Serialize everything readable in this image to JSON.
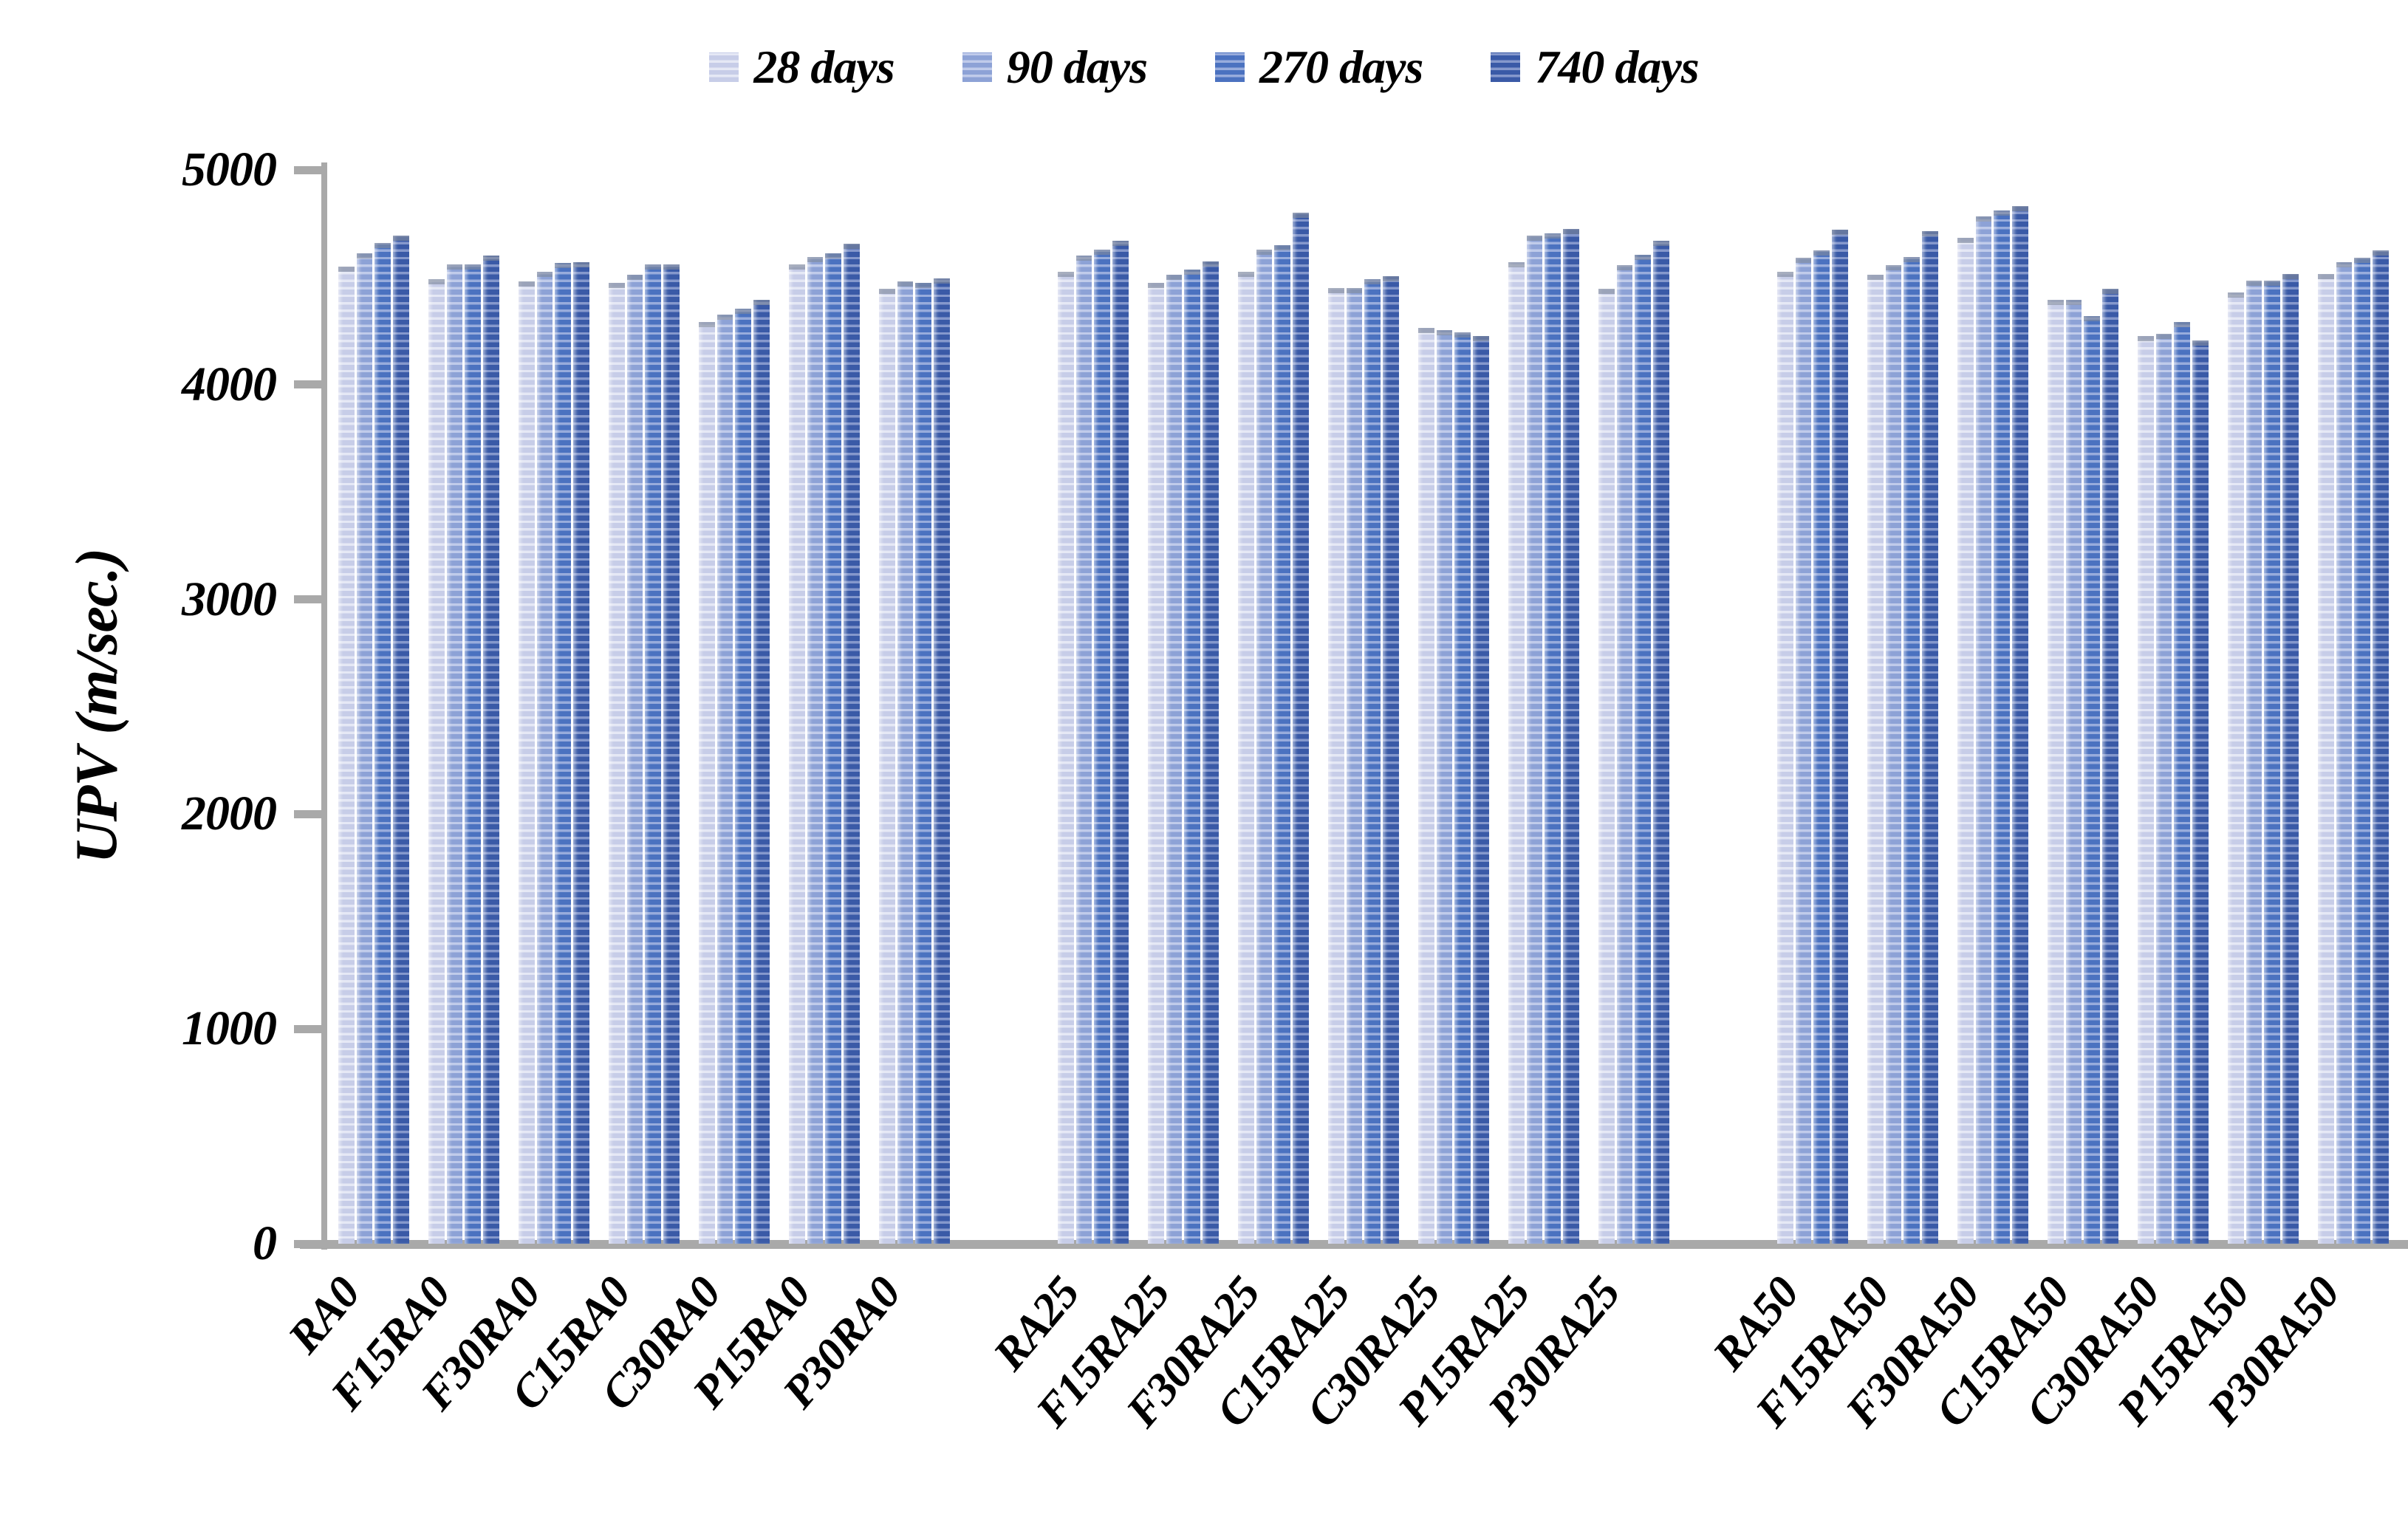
{
  "chart_data": {
    "type": "bar",
    "title": "",
    "xlabel": "",
    "ylabel": "UPV (m/sec.)",
    "ylim": [
      0,
      5000
    ],
    "yticks": [
      0,
      1000,
      2000,
      3000,
      4000,
      5000
    ],
    "grid": false,
    "legend_position": "top-center",
    "axis_color": "#a9a9a9",
    "text_color": "#000000",
    "categories": [
      "RA0",
      "F15RA0",
      "F30RA0",
      "C15RA0",
      "C30RA0",
      "P15RA0",
      "P30RA0",
      "RA25",
      "F15RA25",
      "F30RA25",
      "C15RA25",
      "C30RA25",
      "P15RA25",
      "P30RA25",
      "RA50",
      "F15RA50",
      "F30RA50",
      "C15RA50",
      "C30RA50",
      "P15RA50",
      "P30RA50"
    ],
    "cluster_sizes": [
      7,
      7,
      7
    ],
    "series": [
      {
        "name": "28 days",
        "color_block": "#c7cde8",
        "color_gap": "#e5e8f5",
        "values": [
          4550,
          4490,
          4480,
          4475,
          4290,
          4560,
          4445,
          4525,
          4475,
          4525,
          4450,
          4265,
          4570,
          4445,
          4525,
          4510,
          4685,
          4395,
          4225,
          4430,
          4515
        ]
      },
      {
        "name": "90 days",
        "color_block": "#8da2d6",
        "color_gap": "#c0cbea",
        "values": [
          4610,
          4560,
          4525,
          4510,
          4325,
          4595,
          4480,
          4600,
          4510,
          4630,
          4450,
          4255,
          4695,
          4555,
          4590,
          4555,
          4785,
          4395,
          4235,
          4485,
          4570
        ]
      },
      {
        "name": "270 days",
        "color_block": "#4b72c0",
        "color_gap": "#98acdc",
        "values": [
          4660,
          4560,
          4565,
          4560,
          4355,
          4610,
          4475,
          4630,
          4535,
          4650,
          4490,
          4245,
          4705,
          4605,
          4625,
          4595,
          4810,
          4320,
          4290,
          4485,
          4590
        ]
      },
      {
        "name": "740 days",
        "color_block": "#3a5aa7",
        "color_gap": "#8598cc",
        "values": [
          4695,
          4600,
          4570,
          4560,
          4395,
          4655,
          4495,
          4670,
          4575,
          4800,
          4505,
          4225,
          4725,
          4670,
          4720,
          4715,
          4830,
          4445,
          4205,
          4515,
          4625
        ]
      }
    ]
  }
}
